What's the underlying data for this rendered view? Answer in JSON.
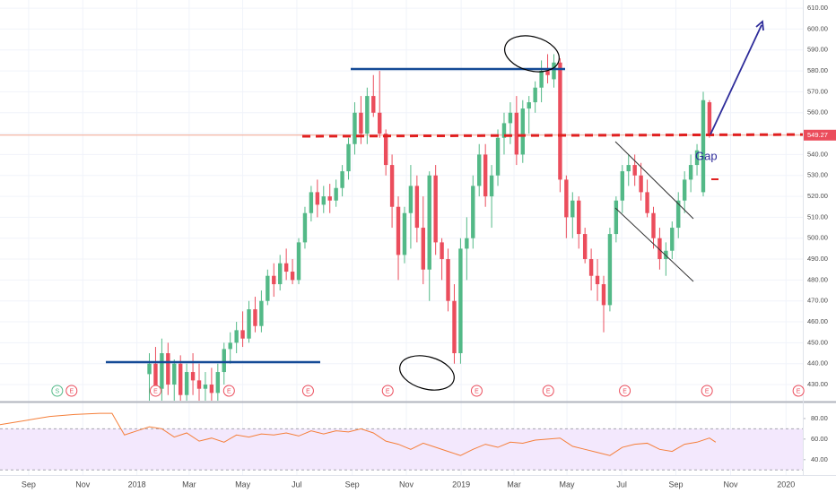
{
  "chart_data": {
    "type": "candlestick",
    "x": [
      2,
      3,
      4,
      5,
      6,
      7,
      8,
      9,
      10,
      11,
      12,
      13,
      14,
      15,
      16,
      17,
      18,
      19,
      20,
      21,
      22,
      23,
      24,
      25,
      26,
      27,
      28,
      29,
      30,
      31,
      32,
      33,
      34,
      35,
      36,
      37,
      38,
      39,
      40,
      41,
      42,
      43,
      44,
      45,
      46,
      47,
      48,
      49,
      50,
      51,
      52,
      53,
      54,
      55,
      56,
      57,
      58,
      59,
      60,
      61,
      62,
      63,
      64,
      65,
      66,
      67,
      68,
      69,
      70,
      71,
      72,
      73,
      74,
      75,
      76,
      77,
      78,
      79,
      80,
      81,
      82,
      83,
      84,
      85,
      86,
      87,
      88,
      89,
      90,
      91,
      92
    ],
    "open": [
      435,
      440,
      428,
      445,
      430,
      440,
      425,
      436,
      432,
      428,
      430,
      426,
      436,
      447,
      450,
      456,
      452,
      466,
      458,
      470,
      482,
      478,
      488,
      484,
      480,
      498,
      512,
      522,
      516,
      520,
      518,
      524,
      532,
      545,
      560,
      550,
      568,
      560,
      550,
      535,
      515,
      492,
      512,
      525,
      505,
      485,
      530,
      498,
      490,
      470,
      445,
      495,
      500,
      525,
      540,
      520,
      530,
      548,
      555,
      560,
      540,
      562,
      565,
      572,
      580,
      576,
      584,
      528,
      510,
      518,
      502,
      490,
      482,
      478,
      468,
      502,
      518,
      532,
      535,
      530,
      522,
      512,
      500,
      490,
      494,
      505,
      518,
      528,
      535,
      522,
      565
    ],
    "high": [
      445,
      448,
      452,
      450,
      442,
      444,
      440,
      445,
      440,
      436,
      438,
      440,
      450,
      455,
      460,
      465,
      470,
      472,
      475,
      485,
      488,
      492,
      495,
      490,
      500,
      515,
      525,
      528,
      525,
      526,
      528,
      535,
      548,
      565,
      568,
      572,
      578,
      580,
      552,
      540,
      520,
      515,
      535,
      530,
      520,
      532,
      535,
      500,
      495,
      478,
      500,
      510,
      530,
      545,
      545,
      535,
      552,
      560,
      565,
      568,
      566,
      568,
      575,
      585,
      588,
      588,
      586,
      530,
      522,
      520,
      505,
      495,
      490,
      482,
      505,
      520,
      535,
      540,
      540,
      536,
      528,
      515,
      505,
      498,
      508,
      522,
      532,
      540,
      545,
      570,
      566
    ],
    "low": [
      420,
      425,
      420,
      425,
      418,
      420,
      418,
      425,
      420,
      418,
      422,
      420,
      430,
      440,
      445,
      448,
      450,
      455,
      455,
      468,
      472,
      475,
      480,
      478,
      478,
      495,
      508,
      510,
      512,
      512,
      515,
      520,
      528,
      540,
      545,
      545,
      558,
      548,
      530,
      505,
      480,
      488,
      495,
      498,
      478,
      470,
      492,
      480,
      465,
      440,
      440,
      480,
      495,
      520,
      515,
      505,
      525,
      540,
      545,
      535,
      536,
      550,
      560,
      565,
      574,
      572,
      522,
      500,
      500,
      495,
      488,
      475,
      470,
      455,
      465,
      498,
      512,
      525,
      525,
      518,
      510,
      495,
      485,
      482,
      490,
      500,
      512,
      522,
      530,
      520,
      548
    ],
    "close": [
      440,
      428,
      445,
      430,
      440,
      425,
      436,
      432,
      428,
      430,
      426,
      436,
      447,
      450,
      456,
      452,
      466,
      458,
      470,
      482,
      478,
      488,
      484,
      480,
      498,
      512,
      522,
      516,
      520,
      518,
      524,
      532,
      545,
      560,
      550,
      568,
      560,
      550,
      535,
      515,
      492,
      512,
      525,
      505,
      485,
      530,
      498,
      490,
      470,
      445,
      495,
      500,
      525,
      540,
      520,
      530,
      548,
      555,
      560,
      540,
      562,
      565,
      572,
      580,
      578,
      584,
      528,
      510,
      518,
      502,
      490,
      482,
      478,
      468,
      502,
      518,
      532,
      535,
      530,
      522,
      512,
      500,
      490,
      494,
      505,
      518,
      528,
      535,
      542,
      566,
      549
    ],
    "up_color": "#53b987",
    "down_color": "#eb4d5c",
    "xlim": [
      -22,
      107
    ],
    "ylim": [
      422.3,
      613.9
    ],
    "xticks": [
      {
        "value": -17.4,
        "label": "Sep"
      },
      {
        "value": -8.7,
        "label": "Nov"
      },
      {
        "value": 0,
        "label": "2018"
      },
      {
        "value": 8.4,
        "label": "Mar"
      },
      {
        "value": 17,
        "label": "May"
      },
      {
        "value": 25.7,
        "label": "Jul"
      },
      {
        "value": 34.6,
        "label": "Sep"
      },
      {
        "value": 43.3,
        "label": "Nov"
      },
      {
        "value": 52.1,
        "label": "2019"
      },
      {
        "value": 60.6,
        "label": "Mar"
      },
      {
        "value": 69.1,
        "label": "May"
      },
      {
        "value": 77.9,
        "label": "Jul"
      },
      {
        "value": 86.6,
        "label": "Sep"
      },
      {
        "value": 95.4,
        "label": "Nov"
      },
      {
        "value": 104.3,
        "label": "2020"
      }
    ],
    "yticks": [
      {
        "value": 430,
        "label": "430.00"
      },
      {
        "value": 440,
        "label": "440.00"
      },
      {
        "value": 450,
        "label": "450.00"
      },
      {
        "value": 460,
        "label": "460.00"
      },
      {
        "value": 470,
        "label": "470.00"
      },
      {
        "value": 480,
        "label": "480.00"
      },
      {
        "value": 490,
        "label": "490.00"
      },
      {
        "value": 500,
        "label": "500.00"
      },
      {
        "value": 510,
        "label": "510.00"
      },
      {
        "value": 520,
        "label": "520.00"
      },
      {
        "value": 530,
        "label": "530.00"
      },
      {
        "value": 540,
        "label": "540.00"
      },
      {
        "value": 550,
        "label": "550.00"
      },
      {
        "value": 560,
        "label": "560.00"
      },
      {
        "value": 570,
        "label": "570.00"
      },
      {
        "value": 580,
        "label": "580.00"
      },
      {
        "value": 590,
        "label": "590.00"
      },
      {
        "value": 600,
        "label": "600.00"
      },
      {
        "value": 610,
        "label": "610.00"
      }
    ],
    "grid": true,
    "last_price": 549.27,
    "annotation": "Gap",
    "events": [
      {
        "x": -12.8,
        "label": "S"
      },
      {
        "x": -10.5,
        "label": "E"
      },
      {
        "x": 3,
        "label": "E"
      },
      {
        "x": 14.8,
        "label": "E"
      },
      {
        "x": 27.5,
        "label": "E"
      },
      {
        "x": 40.3,
        "label": "E"
      },
      {
        "x": 54.6,
        "label": "E"
      },
      {
        "x": 66.1,
        "label": "E"
      },
      {
        "x": 78.4,
        "label": "E"
      },
      {
        "x": 91.6,
        "label": "E"
      },
      {
        "x": 106.3,
        "label": "E"
      }
    ],
    "rsi": {
      "type": "line",
      "color": "#f57f3a",
      "x": [
        -22,
        -20,
        -18,
        -16,
        -14,
        -12,
        -10,
        -8,
        -6,
        -4,
        -2,
        0,
        2,
        4,
        6,
        8,
        10,
        12,
        14,
        16,
        18,
        20,
        22,
        24,
        26,
        28,
        30,
        32,
        34,
        36,
        38,
        40,
        42,
        44,
        46,
        48,
        50,
        52,
        54,
        56,
        58,
        60,
        62,
        64,
        66,
        68,
        70,
        72,
        74,
        76,
        78,
        80,
        82,
        84,
        86,
        88,
        90,
        92,
        93
      ],
      "values": [
        74,
        76,
        78,
        80,
        82,
        83,
        84,
        84.5,
        85,
        85,
        64,
        68,
        72,
        70,
        62,
        66,
        58,
        61,
        57,
        64,
        62,
        65,
        64,
        66,
        63,
        68,
        65,
        68,
        67,
        70,
        66,
        58,
        55,
        50,
        56,
        52,
        48,
        44,
        50,
        55,
        52,
        57,
        56,
        59,
        60,
        61,
        53,
        50,
        47,
        44,
        52,
        55,
        56,
        50,
        48,
        55,
        57,
        61,
        57
      ],
      "ylim": [
        25,
        93
      ],
      "band": [
        30,
        70
      ],
      "yticks": [
        {
          "value": 80,
          "label": "80.00"
        },
        {
          "value": 60,
          "label": "60.00"
        },
        {
          "value": 40,
          "label": "40.00"
        }
      ]
    }
  }
}
